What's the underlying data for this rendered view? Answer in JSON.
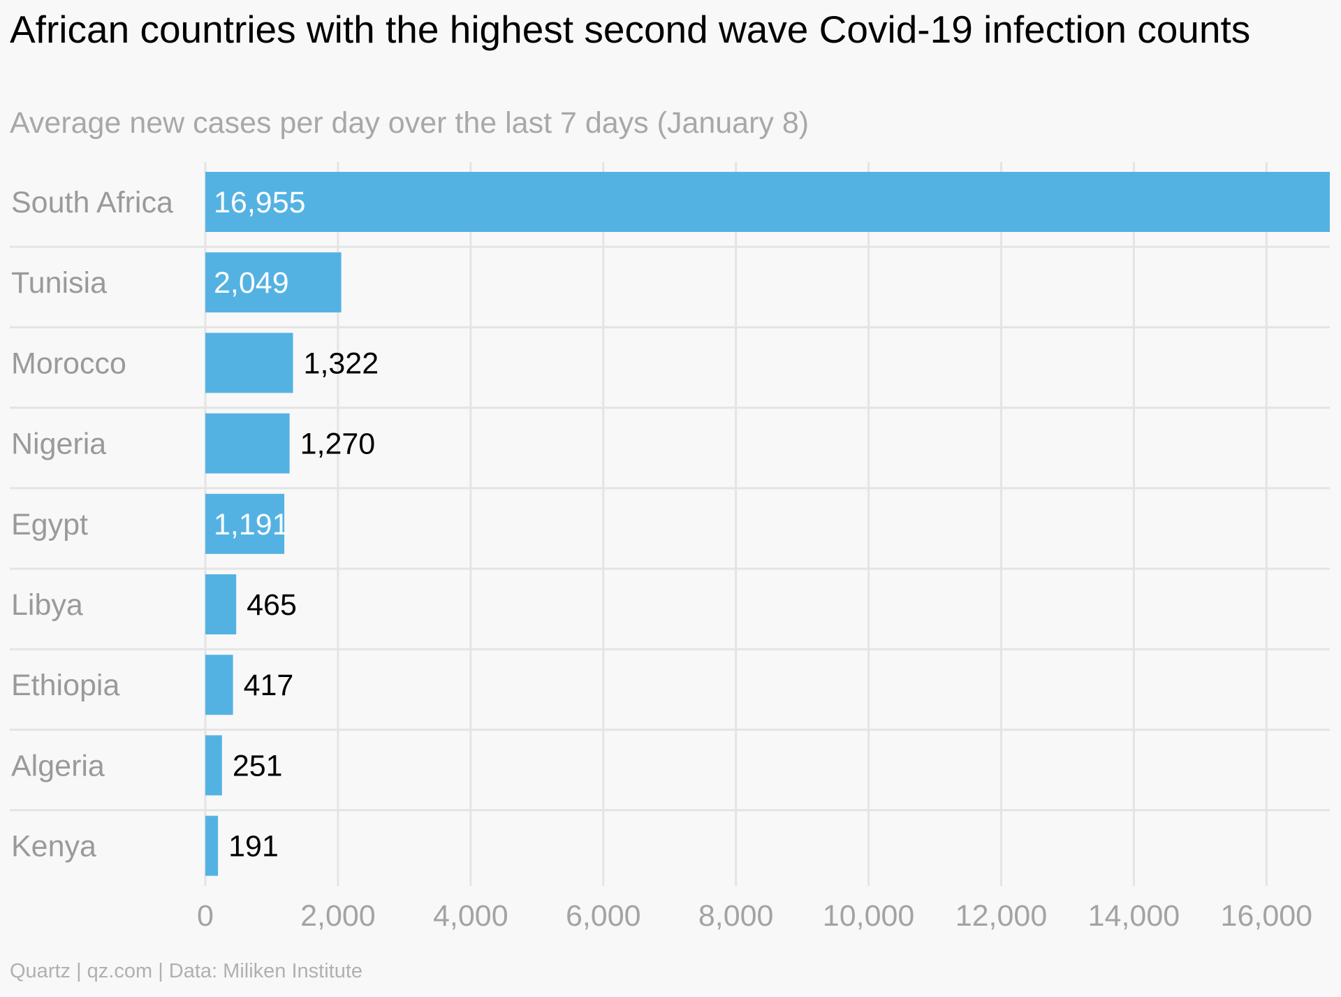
{
  "title": "African countries with the highest second wave Covid-19 infection counts",
  "subtitle": "Average new cases per day over the last 7 days (January 8)",
  "footer": "Quartz | qz.com | Data: Miliken Institute",
  "colors": {
    "bar": "#54b2e3",
    "grid": "#e4e4e4",
    "category_text": "#9a9a9a",
    "tick_text": "#a3a3a3",
    "inside_label": "#ffffff",
    "outside_label": "#000000"
  },
  "chart_data": {
    "type": "bar",
    "orientation": "horizontal",
    "categories": [
      "South Africa",
      "Tunisia",
      "Morocco",
      "Nigeria",
      "Egypt",
      "Libya",
      "Ethiopia",
      "Algeria",
      "Kenya"
    ],
    "values": [
      16955,
      2049,
      1322,
      1270,
      1191,
      465,
      417,
      251,
      191
    ],
    "value_labels": [
      "16,955",
      "2,049",
      "1,322",
      "1,270",
      "1,191",
      "465",
      "417",
      "251",
      "191"
    ],
    "label_inside": [
      true,
      true,
      false,
      false,
      true,
      false,
      false,
      false,
      false
    ],
    "xlim": [
      0,
      16955
    ],
    "xticks": [
      0,
      2000,
      4000,
      6000,
      8000,
      10000,
      12000,
      14000,
      16000
    ],
    "xtick_labels": [
      "0",
      "2,000",
      "4,000",
      "6,000",
      "8,000",
      "10,000",
      "12,000",
      "14,000",
      "16,000"
    ],
    "xlabel": "",
    "ylabel": "",
    "grid": true
  }
}
